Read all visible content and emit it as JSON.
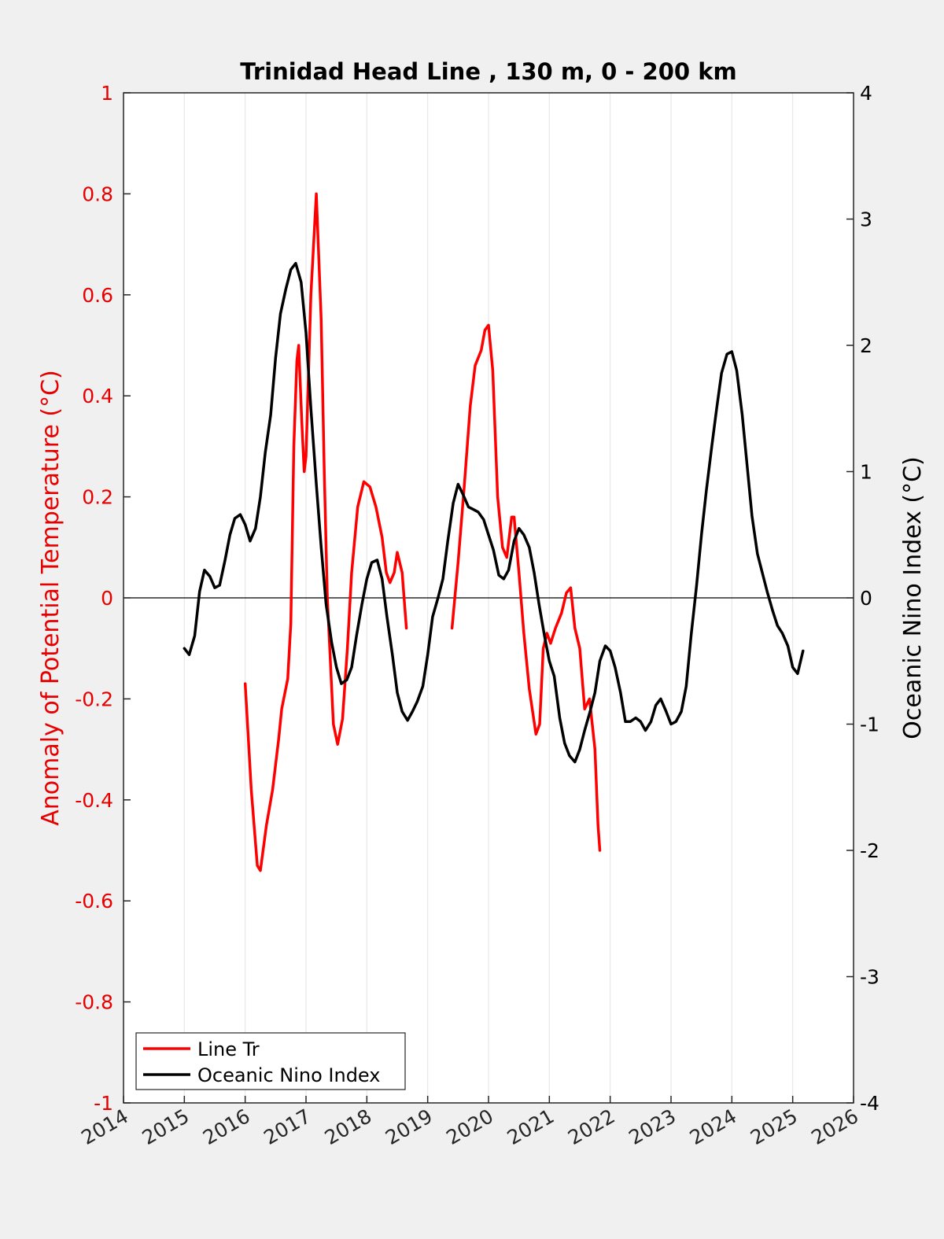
{
  "chart_data": {
    "type": "line",
    "title": "Trinidad Head Line , 130 m, 0 - 200 km",
    "xlabel": "",
    "ylabel_left": "Anomaly of Potential Temperature (°C)",
    "ylabel_right": "Oceanic Nino Index (°C)",
    "xlim": [
      2014,
      2026
    ],
    "ylim_left": [
      -1,
      1
    ],
    "ylim_right": [
      -4,
      4
    ],
    "x_ticks": [
      "2014",
      "2015",
      "2016",
      "2017",
      "2018",
      "2019",
      "2020",
      "2021",
      "2022",
      "2023",
      "2024",
      "2025",
      "2026"
    ],
    "y_ticks_left": [
      "-1",
      "-0.8",
      "-0.6",
      "-0.4",
      "-0.2",
      "0",
      "0.2",
      "0.4",
      "0.6",
      "0.8",
      "1"
    ],
    "y_ticks_right": [
      "-4",
      "-3",
      "-2",
      "-1",
      "0",
      "1",
      "2",
      "3",
      "4"
    ],
    "grid": "vertical",
    "zero_line": true,
    "legend_position": "bottom-left",
    "colors": {
      "line_tr": "#ff0000",
      "oni": "#000000",
      "left_axis": "#e60000",
      "right_axis": "#000000"
    },
    "series": [
      {
        "name": "Line Tr",
        "axis": "left",
        "segments": [
          [
            [
              2015.0,
              -0.17
            ],
            [
              2015.1,
              -0.38
            ],
            [
              2015.2,
              -0.53
            ],
            [
              2015.25,
              -0.54
            ],
            [
              2015.35,
              -0.45
            ],
            [
              2015.45,
              -0.38
            ],
            [
              2015.55,
              -0.28
            ],
            [
              2015.6,
              -0.22
            ],
            [
              2015.7,
              -0.16
            ],
            [
              2015.75,
              -0.05
            ],
            [
              2015.8,
              0.3
            ],
            [
              2015.85,
              0.47
            ],
            [
              2015.88,
              0.5
            ],
            [
              2015.93,
              0.35
            ],
            [
              2015.97,
              0.25
            ],
            [
              2016.0,
              0.28
            ],
            [
              2016.08,
              0.6
            ],
            [
              2016.17,
              0.8
            ],
            [
              2016.25,
              0.55
            ],
            [
              2016.3,
              0.25
            ],
            [
              2016.35,
              0.0
            ],
            [
              2016.45,
              -0.25
            ],
            [
              2016.52,
              -0.29
            ],
            [
              2016.6,
              -0.24
            ],
            [
              2016.68,
              -0.1
            ],
            [
              2016.75,
              0.05
            ],
            [
              2016.85,
              0.18
            ],
            [
              2016.95,
              0.23
            ],
            [
              2017.05,
              0.22
            ],
            [
              2017.15,
              0.18
            ],
            [
              2017.25,
              0.12
            ],
            [
              2017.32,
              0.05
            ],
            [
              2017.38,
              0.03
            ],
            [
              2017.45,
              0.05
            ],
            [
              2017.5,
              0.09
            ],
            [
              2017.58,
              0.05
            ],
            [
              2017.65,
              -0.06
            ]
          ],
          [
            [
              2018.4,
              -0.06
            ],
            [
              2018.5,
              0.07
            ],
            [
              2018.6,
              0.22
            ],
            [
              2018.7,
              0.38
            ],
            [
              2018.78,
              0.46
            ],
            [
              2018.88,
              0.49
            ],
            [
              2018.94,
              0.53
            ],
            [
              2019.0,
              0.54
            ],
            [
              2019.07,
              0.45
            ],
            [
              2019.15,
              0.2
            ],
            [
              2019.23,
              0.1
            ],
            [
              2019.3,
              0.08
            ],
            [
              2019.38,
              0.16
            ],
            [
              2019.42,
              0.16
            ],
            [
              2019.5,
              0.05
            ],
            [
              2019.58,
              -0.07
            ],
            [
              2019.67,
              -0.18
            ],
            [
              2019.78,
              -0.27
            ],
            [
              2019.84,
              -0.25
            ],
            [
              2019.9,
              -0.1
            ],
            [
              2019.96,
              -0.07
            ],
            [
              2020.02,
              -0.09
            ],
            [
              2020.1,
              -0.06
            ],
            [
              2020.2,
              -0.03
            ],
            [
              2020.28,
              0.01
            ],
            [
              2020.35,
              0.02
            ],
            [
              2020.42,
              -0.06
            ],
            [
              2020.5,
              -0.1
            ],
            [
              2020.58,
              -0.22
            ],
            [
              2020.66,
              -0.2
            ],
            [
              2020.75,
              -0.3
            ],
            [
              2020.8,
              -0.45
            ],
            [
              2020.83,
              -0.5
            ]
          ]
        ],
        "segments_x_from": 2014,
        "segments_note_year_shift": 1
      },
      {
        "name": "Oceanic Nino Index",
        "axis": "right",
        "points": [
          [
            2014.0,
            -0.4
          ],
          [
            2014.08,
            -0.45
          ],
          [
            2014.17,
            -0.3
          ],
          [
            2014.25,
            0.05
          ],
          [
            2014.33,
            0.22
          ],
          [
            2014.42,
            0.17
          ],
          [
            2014.5,
            0.08
          ],
          [
            2014.58,
            0.1
          ],
          [
            2014.67,
            0.3
          ],
          [
            2014.75,
            0.5
          ],
          [
            2014.83,
            0.63
          ],
          [
            2014.92,
            0.66
          ],
          [
            2015.0,
            0.58
          ],
          [
            2015.08,
            0.45
          ],
          [
            2015.17,
            0.55
          ],
          [
            2015.25,
            0.8
          ],
          [
            2015.33,
            1.15
          ],
          [
            2015.42,
            1.45
          ],
          [
            2015.5,
            1.9
          ],
          [
            2015.58,
            2.25
          ],
          [
            2015.67,
            2.45
          ],
          [
            2015.75,
            2.6
          ],
          [
            2015.83,
            2.65
          ],
          [
            2015.92,
            2.5
          ],
          [
            2016.0,
            2.1
          ],
          [
            2016.08,
            1.5
          ],
          [
            2016.17,
            0.9
          ],
          [
            2016.25,
            0.4
          ],
          [
            2016.33,
            -0.05
          ],
          [
            2016.42,
            -0.35
          ],
          [
            2016.5,
            -0.55
          ],
          [
            2016.58,
            -0.68
          ],
          [
            2016.67,
            -0.65
          ],
          [
            2016.75,
            -0.55
          ],
          [
            2016.83,
            -0.3
          ],
          [
            2016.92,
            -0.05
          ],
          [
            2017.0,
            0.15
          ],
          [
            2017.08,
            0.28
          ],
          [
            2017.17,
            0.3
          ],
          [
            2017.25,
            0.15
          ],
          [
            2017.33,
            -0.15
          ],
          [
            2017.42,
            -0.45
          ],
          [
            2017.5,
            -0.75
          ],
          [
            2017.58,
            -0.9
          ],
          [
            2017.67,
            -0.97
          ],
          [
            2017.75,
            -0.9
          ],
          [
            2017.83,
            -0.82
          ],
          [
            2017.92,
            -0.7
          ],
          [
            2018.0,
            -0.45
          ],
          [
            2018.08,
            -0.15
          ],
          [
            2018.17,
            0.0
          ],
          [
            2018.25,
            0.15
          ],
          [
            2018.33,
            0.45
          ],
          [
            2018.42,
            0.75
          ],
          [
            2018.5,
            0.9
          ],
          [
            2018.58,
            0.82
          ],
          [
            2018.67,
            0.72
          ],
          [
            2018.75,
            0.7
          ],
          [
            2018.83,
            0.68
          ],
          [
            2018.92,
            0.62
          ],
          [
            2019.0,
            0.5
          ],
          [
            2019.08,
            0.38
          ],
          [
            2019.17,
            0.18
          ],
          [
            2019.25,
            0.15
          ],
          [
            2019.33,
            0.22
          ],
          [
            2019.42,
            0.45
          ],
          [
            2019.5,
            0.55
          ],
          [
            2019.58,
            0.5
          ],
          [
            2019.67,
            0.4
          ],
          [
            2019.75,
            0.2
          ],
          [
            2019.83,
            -0.05
          ],
          [
            2019.92,
            -0.3
          ],
          [
            2020.0,
            -0.5
          ],
          [
            2020.08,
            -0.62
          ],
          [
            2020.17,
            -0.95
          ],
          [
            2020.25,
            -1.15
          ],
          [
            2020.33,
            -1.25
          ],
          [
            2020.42,
            -1.3
          ],
          [
            2020.5,
            -1.2
          ],
          [
            2020.58,
            -1.05
          ],
          [
            2020.67,
            -0.9
          ],
          [
            2020.75,
            -0.75
          ],
          [
            2020.83,
            -0.5
          ],
          [
            2020.92,
            -0.38
          ],
          [
            2021.0,
            -0.42
          ],
          [
            2021.08,
            -0.55
          ],
          [
            2021.17,
            -0.75
          ],
          [
            2021.25,
            -0.98
          ],
          [
            2021.33,
            -0.98
          ],
          [
            2021.42,
            -0.95
          ],
          [
            2021.5,
            -0.98
          ],
          [
            2021.58,
            -1.05
          ],
          [
            2021.67,
            -0.98
          ],
          [
            2021.75,
            -0.85
          ],
          [
            2021.83,
            -0.8
          ],
          [
            2021.92,
            -0.9
          ],
          [
            2022.0,
            -1.0
          ],
          [
            2022.08,
            -0.98
          ],
          [
            2022.17,
            -0.9
          ],
          [
            2022.25,
            -0.7
          ],
          [
            2022.33,
            -0.3
          ],
          [
            2022.42,
            0.1
          ],
          [
            2022.5,
            0.5
          ],
          [
            2022.58,
            0.85
          ],
          [
            2022.67,
            1.2
          ],
          [
            2022.75,
            1.5
          ],
          [
            2022.83,
            1.78
          ],
          [
            2022.92,
            1.93
          ],
          [
            2023.0,
            1.95
          ],
          [
            2023.08,
            1.8
          ],
          [
            2023.17,
            1.45
          ],
          [
            2023.25,
            1.05
          ],
          [
            2023.33,
            0.65
          ],
          [
            2023.42,
            0.35
          ],
          [
            2023.5,
            0.2
          ],
          [
            2023.58,
            0.05
          ],
          [
            2023.67,
            -0.1
          ],
          [
            2023.75,
            -0.22
          ],
          [
            2023.83,
            -0.28
          ],
          [
            2023.92,
            -0.38
          ],
          [
            2024.0,
            -0.55
          ],
          [
            2024.08,
            -0.6
          ],
          [
            2024.17,
            -0.42
          ]
        ],
        "points_note_year_shift": 1
      }
    ]
  },
  "legend": {
    "items": [
      {
        "label": "Line Tr",
        "color": "#ff0000"
      },
      {
        "label": "Oceanic Nino Index",
        "color": "#000000"
      }
    ]
  }
}
